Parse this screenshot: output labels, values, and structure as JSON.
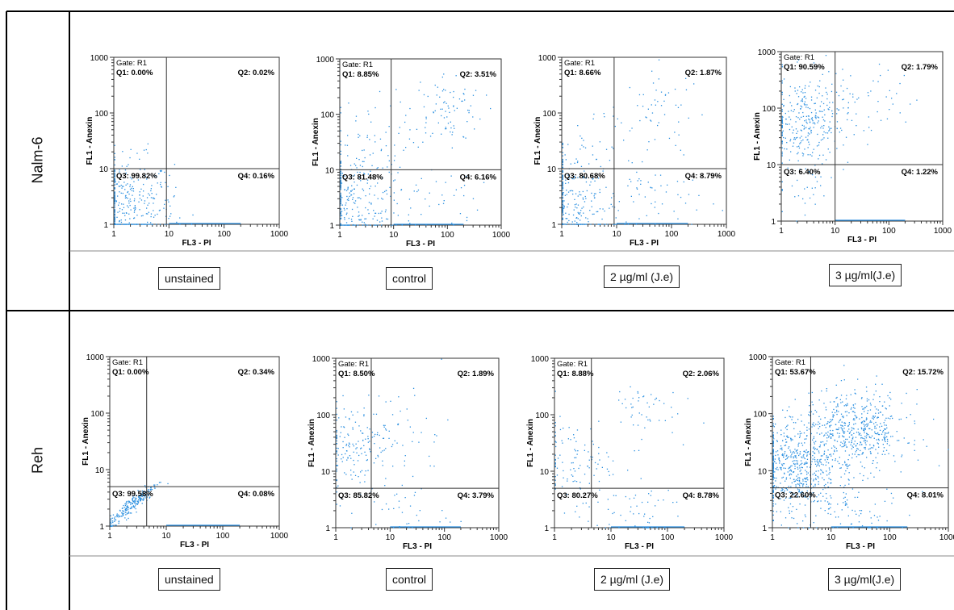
{
  "rows": [
    {
      "label": "Nalm-6"
    },
    {
      "label": "Reh"
    }
  ],
  "conditions": [
    "unstained",
    "control",
    "2 µg/ml (J.e)",
    "3 µg/ml(J.e)"
  ],
  "chart_data": [
    {
      "type": "scatter",
      "row": "Nalm-6",
      "condition": "unstained",
      "gate": "Gate: R1",
      "xlabel": "FL3  - PI",
      "ylabel": "FL1  - Anexin",
      "xscale": "log",
      "yscale": "log",
      "xlim": [
        1,
        1000
      ],
      "ylim": [
        1,
        1000
      ],
      "xticks": [
        "1",
        "10",
        "100",
        "1000"
      ],
      "yticks": [
        "1",
        "10",
        "100",
        "1000"
      ],
      "x_gate": 9,
      "y_gate": 10,
      "quadrants": {
        "Q1": "Q1:  0.00%",
        "Q2": "Q2:  0.02%",
        "Q3": "Q3:  99.82%",
        "Q4": "Q4:  0.16%"
      },
      "clusters": [
        {
          "cx": 1.5,
          "cy": 2.0,
          "sx": 0.45,
          "sy": 0.45,
          "n": 320
        },
        {
          "cx": 3,
          "cy": 3,
          "sx": 0.5,
          "sy": 0.5,
          "n": 40
        }
      ]
    },
    {
      "type": "scatter",
      "row": "Nalm-6",
      "condition": "control",
      "gate": "Gate: R1",
      "xlabel": "FL3  - PI",
      "ylabel": "FL1  - Anexin",
      "xscale": "log",
      "yscale": "log",
      "xlim": [
        1,
        1000
      ],
      "ylim": [
        1,
        1000
      ],
      "xticks": [
        "1",
        "10",
        "100",
        "1000"
      ],
      "yticks": [
        "1",
        "10",
        "100",
        "1000"
      ],
      "x_gate": 9,
      "y_gate": 10,
      "quadrants": {
        "Q1": "Q1:  8.85%",
        "Q2": "Q2:  3.51%",
        "Q3": "Q3:  81.48%",
        "Q4": "Q4:  6.16%"
      },
      "clusters": [
        {
          "cx": 1.6,
          "cy": 2.5,
          "sx": 0.5,
          "sy": 0.5,
          "n": 300
        },
        {
          "cx": 90,
          "cy": 120,
          "sx": 0.35,
          "sy": 0.35,
          "n": 90
        },
        {
          "cx": 3,
          "cy": 40,
          "sx": 0.4,
          "sy": 0.35,
          "n": 40
        },
        {
          "cx": 60,
          "cy": 3,
          "sx": 0.4,
          "sy": 0.3,
          "n": 40
        }
      ]
    },
    {
      "type": "scatter",
      "row": "Nalm-6",
      "condition": "2 µg/ml (J.e)",
      "gate": "Gate: R1",
      "xlabel": "FL3  - PI",
      "ylabel": "FL1  - Anexin",
      "xscale": "log",
      "yscale": "log",
      "xlim": [
        1,
        1000
      ],
      "ylim": [
        1,
        1000
      ],
      "xticks": [
        "1",
        "10",
        "100",
        "1000"
      ],
      "yticks": [
        "1",
        "10",
        "100",
        "1000"
      ],
      "x_gate": 9,
      "y_gate": 10,
      "quadrants": {
        "Q1": "Q1:  8.66%",
        "Q2": "Q2:  1.87%",
        "Q3": "Q3:  80.68%",
        "Q4": "Q4:  8.79%"
      },
      "clusters": [
        {
          "cx": 1.5,
          "cy": 2.2,
          "sx": 0.45,
          "sy": 0.5,
          "n": 280
        },
        {
          "cx": 70,
          "cy": 100,
          "sx": 0.35,
          "sy": 0.4,
          "n": 50
        },
        {
          "cx": 3,
          "cy": 40,
          "sx": 0.4,
          "sy": 0.35,
          "n": 30
        },
        {
          "cx": 50,
          "cy": 3,
          "sx": 0.45,
          "sy": 0.3,
          "n": 50
        }
      ]
    },
    {
      "type": "scatter",
      "row": "Nalm-6",
      "condition": "3 µg/ml(J.e)",
      "gate": "Gate: R1",
      "xlabel": "FL3  - PI",
      "ylabel": "FL1  - Anexin",
      "xscale": "log",
      "yscale": "log",
      "xlim": [
        1,
        1000
      ],
      "ylim": [
        1,
        1000
      ],
      "xticks": [
        "1",
        "10",
        "100",
        "1000"
      ],
      "yticks": [
        "1",
        "10",
        "100",
        "1000"
      ],
      "x_gate": 10,
      "y_gate": 10,
      "quadrants": {
        "Q1": "Q1:  90.59%",
        "Q2": "Q2:  1.79%",
        "Q3": "Q3:  6.40%",
        "Q4": "Q4:  1.22%"
      },
      "clusters": [
        {
          "cx": 3,
          "cy": 60,
          "sx": 0.4,
          "sy": 0.4,
          "n": 320
        },
        {
          "cx": 60,
          "cy": 150,
          "sx": 0.35,
          "sy": 0.3,
          "n": 30
        },
        {
          "cx": 3,
          "cy": 4,
          "sx": 0.35,
          "sy": 0.3,
          "n": 30
        }
      ]
    },
    {
      "type": "scatter",
      "row": "Reh",
      "condition": "unstained",
      "gate": "Gate: R1",
      "xlabel": "FL3  - PI",
      "ylabel": "FL1  - Anexin",
      "xscale": "log",
      "yscale": "log",
      "xlim": [
        1,
        1000
      ],
      "ylim": [
        1,
        1000
      ],
      "xticks": [
        "1",
        "10",
        "100",
        "1000"
      ],
      "yticks": [
        "1",
        "10",
        "100",
        "1000"
      ],
      "x_gate": 4.5,
      "y_gate": 5,
      "quadrants": {
        "Q1": "Q1:  0.00%",
        "Q2": "Q2:  0.34%",
        "Q3": "Q3:  99.58%",
        "Q4": "Q4:  0.08%"
      },
      "clusters": [
        {
          "cx": 2.5,
          "cy": 2.5,
          "sx": 0.22,
          "sy": 0.22,
          "n": 220,
          "diag": true
        }
      ]
    },
    {
      "type": "scatter",
      "row": "Reh",
      "condition": "control",
      "gate": "Gate: R1",
      "xlabel": "FL3  - PI",
      "ylabel": "FL1  - Anexin",
      "xscale": "log",
      "yscale": "log",
      "xlim": [
        1,
        1000
      ],
      "ylim": [
        1,
        1000
      ],
      "xticks": [
        "1",
        "10",
        "100",
        "1000"
      ],
      "yticks": [
        "1",
        "10",
        "100",
        "1000"
      ],
      "x_gate": 4.5,
      "y_gate": 5,
      "quadrants": {
        "Q1": "Q1:  8.50%",
        "Q2": "Q2:  1.89%",
        "Q3": "Q3:  85.82%",
        "Q4": "Q4:  3.79%"
      },
      "clusters": [
        {
          "cx": 2,
          "cy": 30,
          "sx": 0.35,
          "sy": 0.35,
          "n": 160
        },
        {
          "cx": 20,
          "cy": 60,
          "sx": 0.4,
          "sy": 0.45,
          "n": 40
        },
        {
          "cx": 15,
          "cy": 2,
          "sx": 0.45,
          "sy": 0.3,
          "n": 40
        }
      ]
    },
    {
      "type": "scatter",
      "row": "Reh",
      "condition": "2 µg/ml (J.e)",
      "gate": "Gate: R1",
      "xlabel": "FL3  - PI",
      "ylabel": "FL1  - Anexin",
      "xscale": "log",
      "yscale": "log",
      "xlim": [
        1,
        1000
      ],
      "ylim": [
        1,
        1000
      ],
      "xticks": [
        "1",
        "10",
        "100",
        "1000"
      ],
      "yticks": [
        "1",
        "10",
        "100",
        "1000"
      ],
      "x_gate": 4.5,
      "y_gate": 5,
      "quadrants": {
        "Q1": "Q1:  8.88%",
        "Q2": "Q2:  2.06%",
        "Q3": "Q3:  80.27%",
        "Q4": "Q4:  8.78%"
      },
      "clusters": [
        {
          "cx": 2,
          "cy": 15,
          "sx": 0.35,
          "sy": 0.35,
          "n": 100
        },
        {
          "cx": 30,
          "cy": 130,
          "sx": 0.35,
          "sy": 0.25,
          "n": 50
        },
        {
          "cx": 20,
          "cy": 2,
          "sx": 0.5,
          "sy": 0.3,
          "n": 60
        }
      ]
    },
    {
      "type": "scatter",
      "row": "Reh",
      "condition": "3 µg/ml(J.e)",
      "gate": "Gate: R1",
      "xlabel": "FL3  - PI",
      "ylabel": "FL1  - Anexin",
      "xscale": "log",
      "yscale": "log",
      "xlim": [
        1,
        1000
      ],
      "ylim": [
        1,
        1000
      ],
      "xticks": [
        "1",
        "10",
        "100",
        "1000"
      ],
      "yticks": [
        "1",
        "10",
        "100",
        "1000"
      ],
      "x_gate": 4.5,
      "y_gate": 5,
      "quadrants": {
        "Q1": "Q1:  53.67%",
        "Q2": "Q2:  15.72%",
        "Q3": "Q3:  22.60%",
        "Q4": "Q4:  8.01%"
      },
      "clusters": [
        {
          "cx": 2.5,
          "cy": 12,
          "sx": 0.35,
          "sy": 0.4,
          "n": 550
        },
        {
          "cx": 25,
          "cy": 50,
          "sx": 0.45,
          "sy": 0.35,
          "n": 550
        },
        {
          "cx": 15,
          "cy": 2,
          "sx": 0.45,
          "sy": 0.3,
          "n": 90
        }
      ]
    }
  ]
}
